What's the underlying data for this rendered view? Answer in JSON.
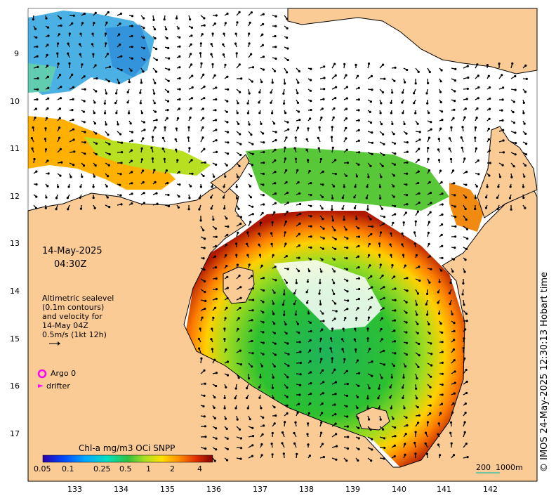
{
  "map": {
    "date": "14-May-2025",
    "time": "04:30Z",
    "lat_ticks": [
      "9",
      "10",
      "11",
      "12",
      "13",
      "14",
      "15",
      "16",
      "17"
    ],
    "lon_ticks": [
      "133",
      "134",
      "135",
      "136",
      "137",
      "138",
      "139",
      "140",
      "141",
      "142"
    ],
    "altimetry_note": [
      "Altimetric sealevel",
      "(0.1m contours)",
      "and velocity for",
      "14-May 04Z",
      "0.5m/s (1kt 12h)"
    ],
    "argo_label": "Argo 0",
    "drifter_label": "drifter",
    "colorbar": {
      "title": "Chl-a mg/m3 OCi SNPP",
      "ticks": [
        "0.05",
        "0.1",
        "0.25",
        "0.5",
        "1",
        "2",
        "4"
      ]
    },
    "scale_labels": [
      "200",
      "1000m"
    ],
    "copyright": "© IMOS 24-May-2025 12:30:13 Hobart time",
    "colors": {
      "land": "#fbcb96",
      "coast": "#000000",
      "argo": "#ff00ff"
    }
  }
}
